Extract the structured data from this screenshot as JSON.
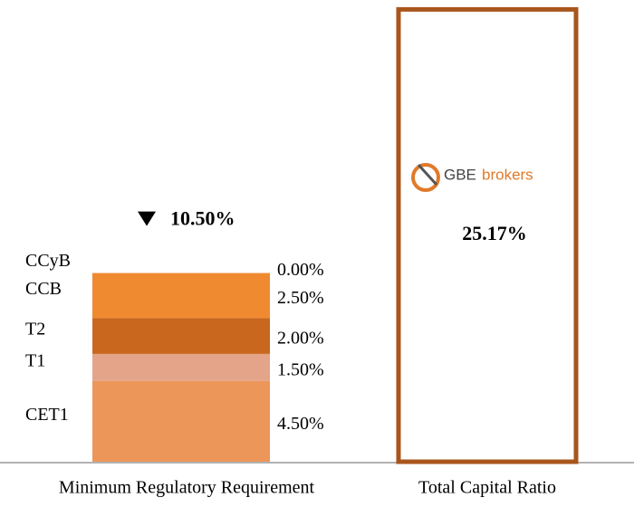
{
  "chart_data": {
    "type": "stacked_bar",
    "bars": [
      {
        "label": "Minimum Regulatory Requirement",
        "segments": [
          {
            "name": "CET1",
            "value": 4.5,
            "value_label": "4.50%",
            "color": "#ec965a"
          },
          {
            "name": "T1",
            "value": 1.5,
            "value_label": "1.50%",
            "color": "#e4a48a"
          },
          {
            "name": "T2",
            "value": 2.0,
            "value_label": "2.00%",
            "color": "#c9671f"
          },
          {
            "name": "CCB",
            "value": 2.5,
            "value_label": "2.50%",
            "color": "#f08a30"
          },
          {
            "name": "CCyB",
            "value": 0.0,
            "value_label": "0.00%",
            "color": "#f7a040"
          }
        ],
        "total": 10.5,
        "total_label": "10.50%"
      },
      {
        "label": "Total Capital Ratio",
        "value": 25.17,
        "value_label": "25.17%",
        "color": "#a8561c",
        "logo": [
          "GBE",
          "brokers"
        ]
      }
    ]
  }
}
